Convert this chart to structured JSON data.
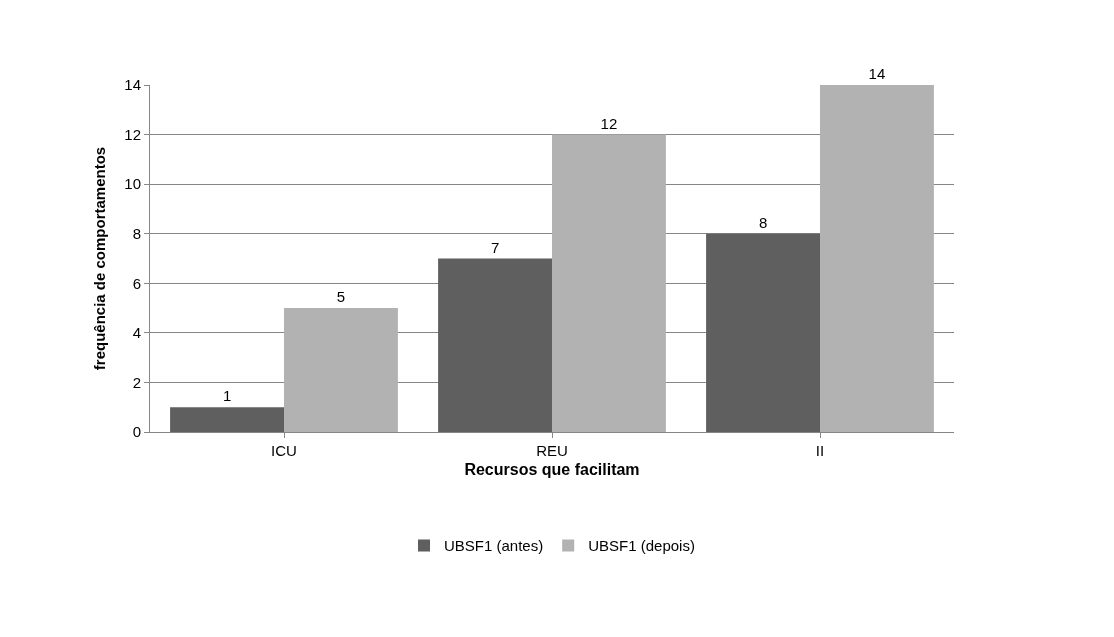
{
  "chart_data": {
    "type": "bar",
    "xlabel": "Recursos que facilitam",
    "ylabel": "frequência de comportamentos",
    "categories": [
      "ICU",
      "REU",
      "II"
    ],
    "series": [
      {
        "name": "UBSF1 (antes)",
        "color": "#5f5f5f",
        "values": [
          1,
          7,
          8
        ]
      },
      {
        "name": "UBSF1 (depois)",
        "color": "#b2b2b2",
        "values": [
          5,
          12,
          14
        ]
      }
    ],
    "ylim": [
      0,
      14
    ],
    "yticks": [
      0,
      2,
      4,
      6,
      8,
      10,
      12,
      14
    ],
    "grid": "y",
    "legend": "bottom",
    "data_labels": true
  }
}
